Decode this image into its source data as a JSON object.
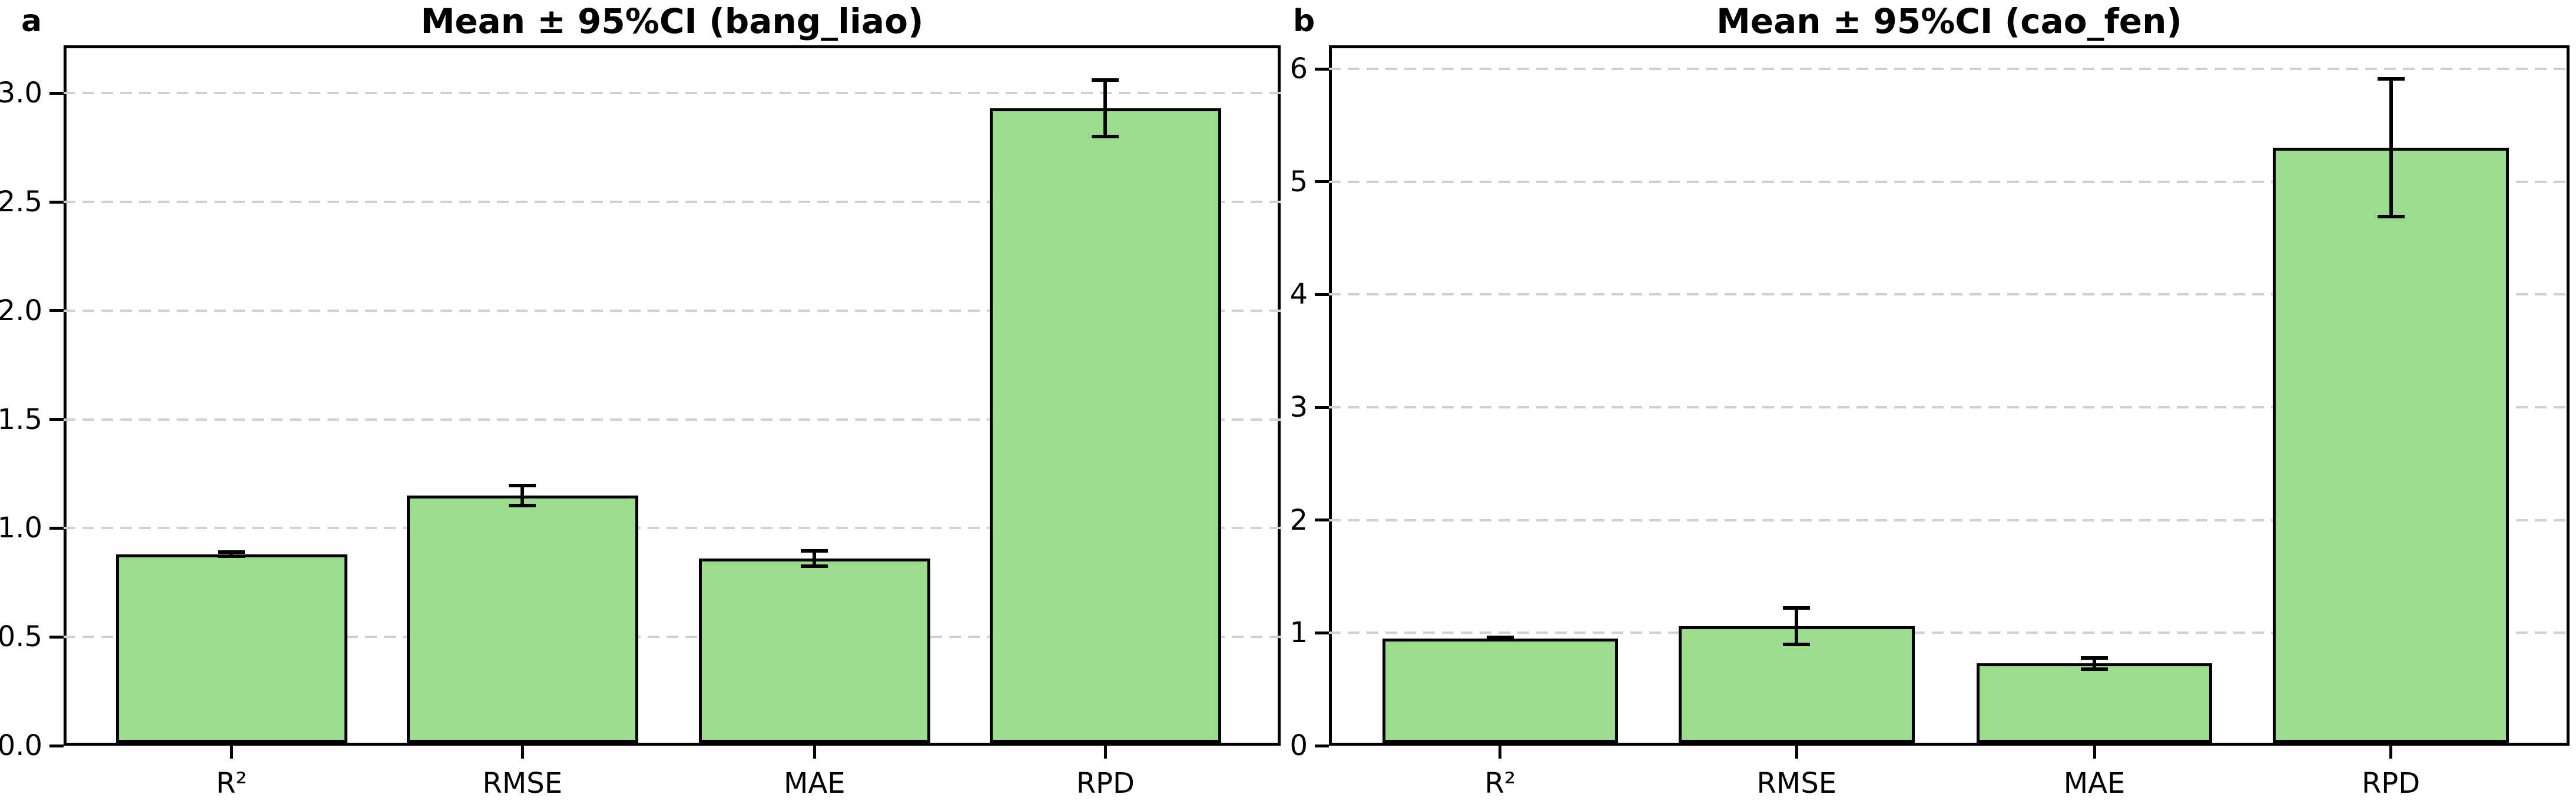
{
  "chart_data": [
    {
      "type": "bar",
      "panel_label": "a",
      "title": "Mean ± 95%CI (bang_liao)",
      "categories": [
        "R²",
        "RMSE",
        "MAE",
        "RPD"
      ],
      "values": [
        0.88,
        1.15,
        0.86,
        2.93
      ],
      "ci95": [
        0.01,
        0.045,
        0.035,
        0.13
      ],
      "xlabel": "",
      "ylabel": "",
      "ylim": [
        0,
        3.22
      ],
      "ytick_values": [
        0,
        0.5,
        1,
        1.5,
        2,
        2.5,
        3
      ],
      "ytick_labels": [
        "0.0",
        "0.5",
        "1.0",
        "1.5",
        "2.0",
        "2.5",
        "3.0"
      ],
      "grid": "horizontal-dashed",
      "legend": null
    },
    {
      "type": "bar",
      "panel_label": "b",
      "title": "Mean ± 95%CI (cao_fen)",
      "categories": [
        "R²",
        "RMSE",
        "MAE",
        "RPD"
      ],
      "values": [
        0.95,
        1.06,
        0.73,
        5.3
      ],
      "ci95": [
        0.01,
        0.16,
        0.05,
        0.61
      ],
      "xlabel": "",
      "ylabel": "",
      "ylim": [
        0,
        6.21
      ],
      "ytick_values": [
        0,
        1,
        2,
        3,
        4,
        5,
        6
      ],
      "ytick_labels": [
        "0",
        "1",
        "2",
        "3",
        "4",
        "5",
        "6"
      ],
      "grid": "horizontal-dashed",
      "legend": null
    }
  ],
  "style": {
    "bar_fill": "#9ADE8D",
    "bar_edge": "#000000",
    "error_color": "#000000",
    "grid_color": "#d0d0d0",
    "background": "#ffffff",
    "text_color": "#000000"
  }
}
